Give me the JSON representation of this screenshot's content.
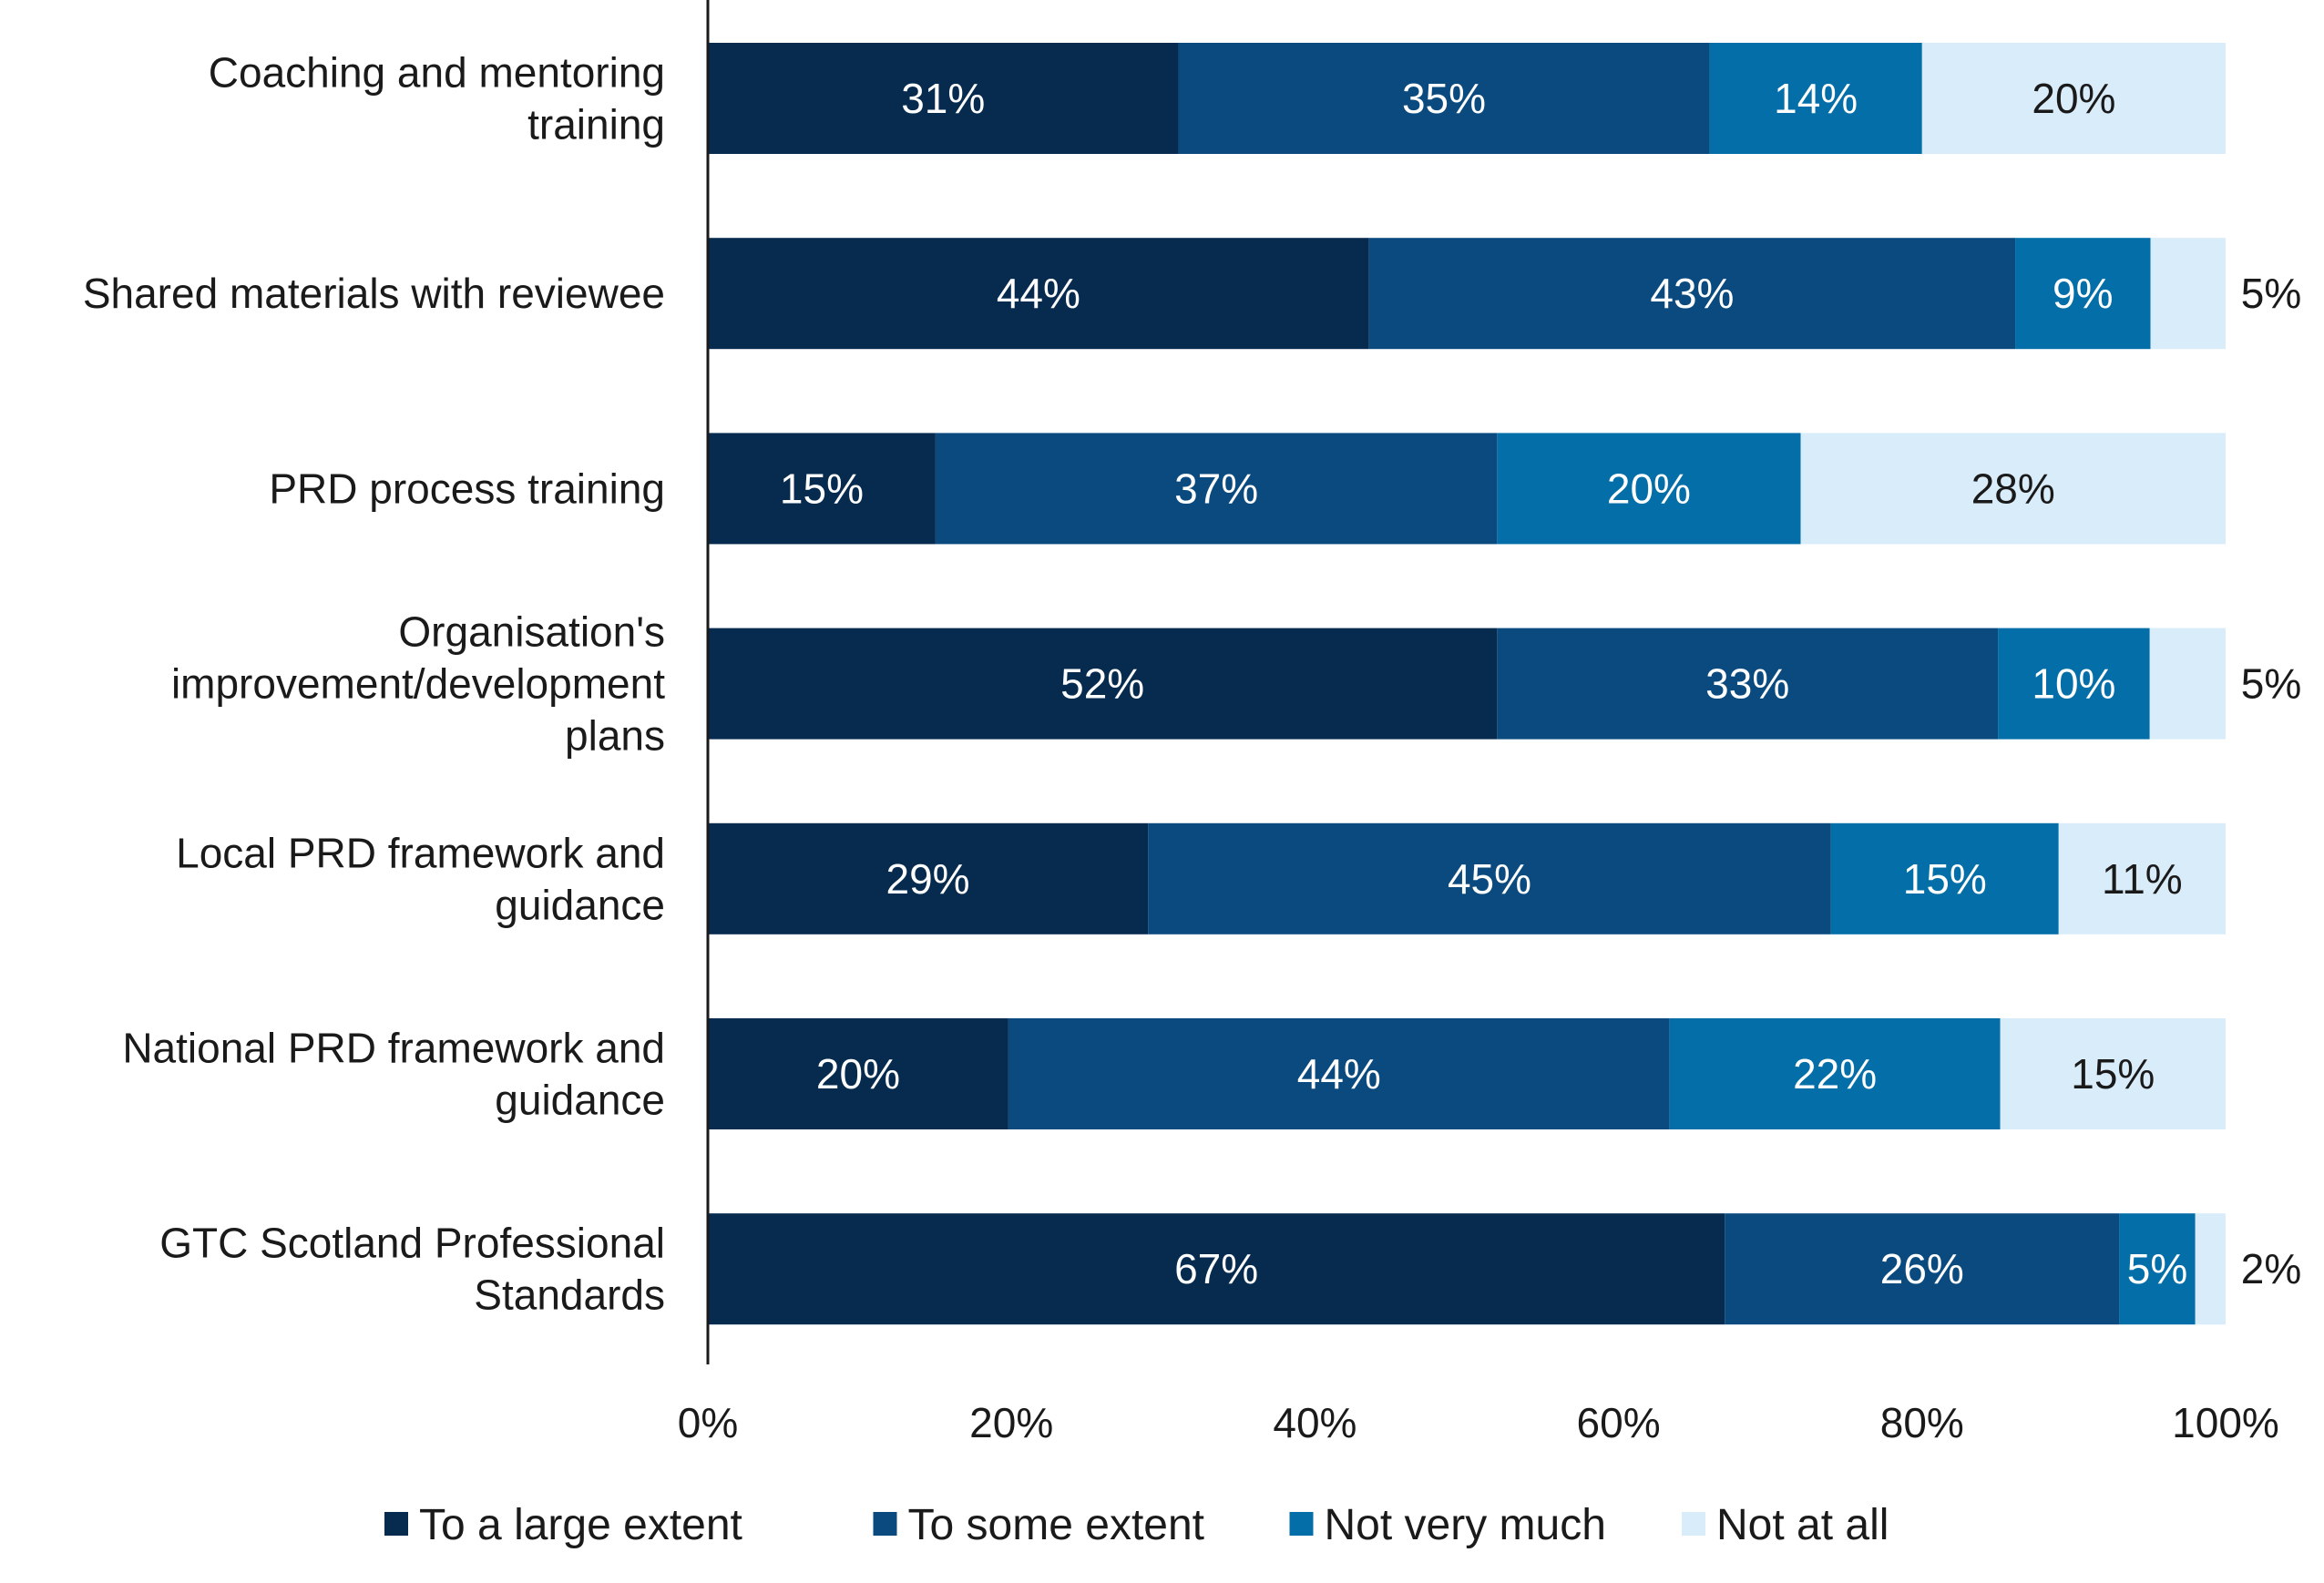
{
  "chart_data": {
    "type": "bar",
    "orientation": "horizontal",
    "stacked": true,
    "categories": [
      [
        "Coaching and mentoring",
        "training"
      ],
      [
        "Shared materials with reviewee"
      ],
      [
        "PRD process training"
      ],
      [
        "Organisation's",
        "improvement/development",
        "plans"
      ],
      [
        "Local PRD framework and",
        "guidance"
      ],
      [
        "National PRD framework and",
        "guidance"
      ],
      [
        "GTC Scotland Professional",
        "Standards"
      ]
    ],
    "series": [
      {
        "name": "To a large extent",
        "color": "#062b4f",
        "values": [
          31,
          44,
          15,
          52,
          29,
          20,
          67
        ],
        "labels": [
          "31%",
          "44%",
          "15%",
          "52%",
          "29%",
          "20%",
          "67%"
        ]
      },
      {
        "name": "To some extent",
        "color": "#0b4a7e",
        "values": [
          35,
          43,
          37,
          33,
          45,
          44,
          26
        ],
        "labels": [
          "35%",
          "43%",
          "37%",
          "33%",
          "45%",
          "44%",
          "26%"
        ]
      },
      {
        "name": "Not very much",
        "color": "#046ea8",
        "values": [
          14,
          9,
          20,
          10,
          15,
          22,
          5
        ],
        "labels": [
          "14%",
          "9%",
          "20%",
          "10%",
          "15%",
          "22%",
          "5%"
        ]
      },
      {
        "name": "Not at all",
        "color": "#d9ecfa",
        "values": [
          20,
          5,
          28,
          5,
          11,
          15,
          2
        ],
        "labels": [
          "20%",
          "5%",
          "28%",
          "5%",
          "11%",
          "15%",
          "2%"
        ]
      }
    ],
    "xlim": [
      0,
      100
    ],
    "x_ticks": [
      "0%",
      "20%",
      "40%",
      "60%",
      "80%",
      "100%"
    ],
    "x_tick_values": [
      0,
      20,
      40,
      60,
      80,
      100
    ],
    "grid": false,
    "legend_position": "bottom",
    "title": "",
    "xlabel": "",
    "ylabel": ""
  }
}
